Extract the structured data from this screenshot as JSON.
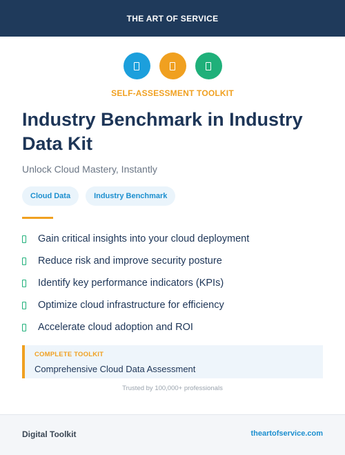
{
  "header": {
    "title": "THE ART OF SERVICE"
  },
  "icons": [
    {
      "name": "document-icon",
      "color": "#1c9fdc"
    },
    {
      "name": "document-icon",
      "color": "#f0a020"
    },
    {
      "name": "document-icon",
      "color": "#1fb07a"
    }
  ],
  "kicker": "SELF-ASSESSMENT TOOLKIT",
  "title": "Industry Benchmark in Industry Data Kit",
  "subtitle": "Unlock Cloud Mastery, Instantly",
  "tags": [
    "Cloud Data",
    "Industry Benchmark"
  ],
  "features": [
    "Gain critical insights into your cloud deployment",
    "Reduce risk and improve security posture",
    "Identify key performance indicators (KPIs)",
    "Optimize cloud infrastructure for efficiency",
    "Accelerate cloud adoption and ROI"
  ],
  "callout": {
    "label": "COMPLETE TOOLKIT",
    "text": "Comprehensive Cloud Data Assessment"
  },
  "trusted": "Trusted by 100,000+ professionals",
  "footer": {
    "left": "Digital Toolkit",
    "right": "theartofservice.com"
  },
  "colors": {
    "header_bg": "#1f3a5b",
    "accent_orange": "#f0a020",
    "accent_blue": "#1c8fcf",
    "accent_green": "#1fb07a",
    "title": "#1d3557"
  }
}
